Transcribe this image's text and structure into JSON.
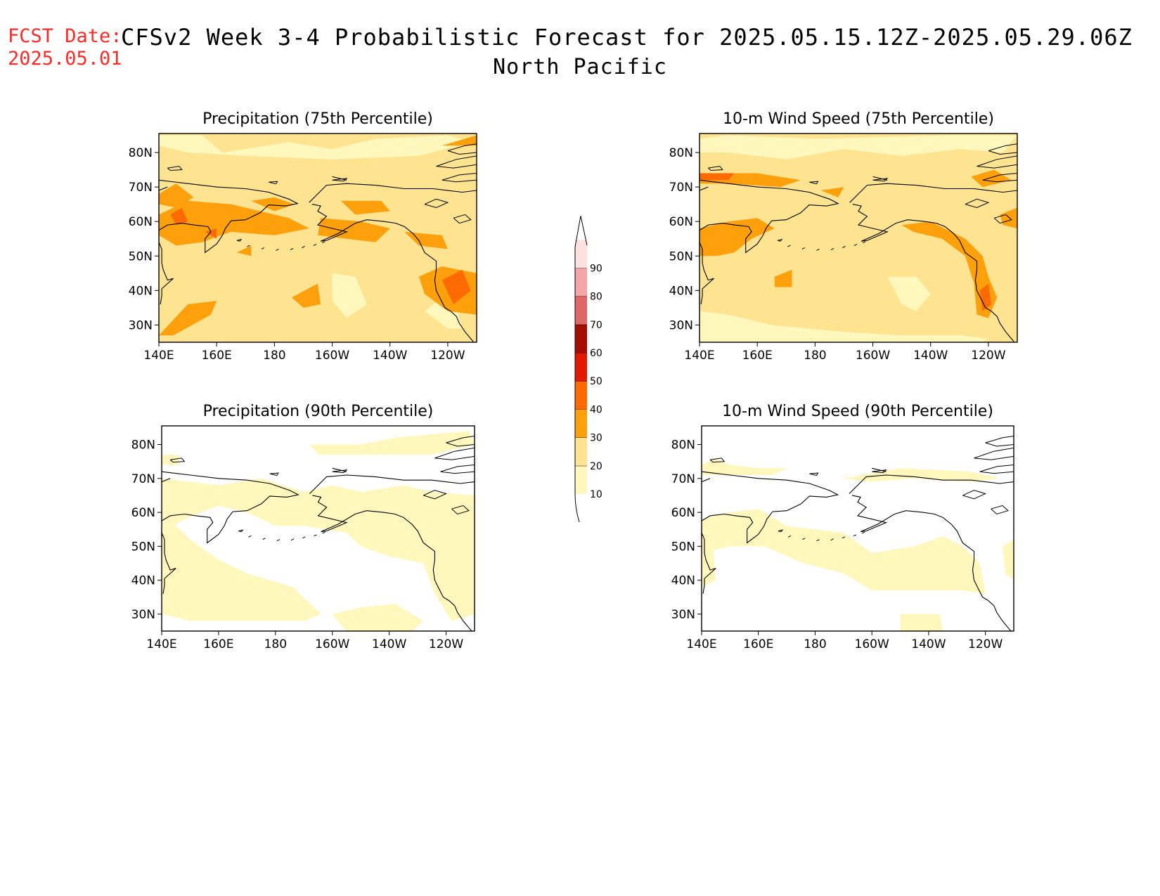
{
  "header": {
    "fcst_label": "FCST Date:",
    "fcst_date": "2025.05.01",
    "title": "CFSv2 Week 3-4 Probabilistic Forecast for 2025.05.15.12Z-2025.05.29.06Z",
    "region": "North Pacific"
  },
  "axes": {
    "x_ticks": [
      "140E",
      "160E",
      "180",
      "160W",
      "140W",
      "120W"
    ],
    "y_ticks": [
      "80N",
      "70N",
      "60N",
      "50N",
      "40N",
      "30N"
    ]
  },
  "panels": [
    {
      "title": "Precipitation (75th Percentile)",
      "variable": "precipitation",
      "percentile": 75
    },
    {
      "title": "10-m Wind Speed (75th Percentile)",
      "variable": "wind",
      "percentile": 75
    },
    {
      "title": "Precipitation (90th Percentile)",
      "variable": "precipitation",
      "percentile": 90
    },
    {
      "title": "10-m Wind Speed (90th Percentile)",
      "variable": "wind",
      "percentile": 90
    }
  ],
  "colorbar": {
    "labels": [
      "10",
      "20",
      "30",
      "40",
      "50",
      "60",
      "70",
      "80",
      "90"
    ],
    "colors": [
      "#fff7bc",
      "#fee391",
      "#fe9f0c",
      "#fd6a02",
      "#e31a02",
      "#a50c02",
      "#e06767",
      "#f4a6a6",
      "#fde1e1"
    ]
  }
}
